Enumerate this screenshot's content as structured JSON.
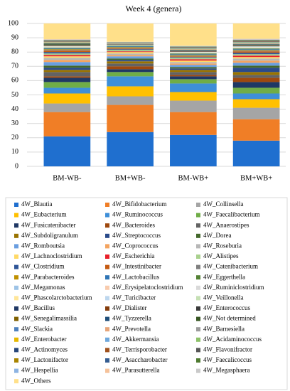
{
  "chart_data": {
    "type": "stacked_bar",
    "title": "Week 4 (genera)",
    "categories": [
      "BM-WB-",
      "BM+WB-",
      "BM-WB+",
      "BM+WB+"
    ],
    "ylim": [
      0,
      100
    ],
    "yticks": [
      0,
      10,
      20,
      30,
      40,
      50,
      60,
      70,
      80,
      90,
      100
    ],
    "grid": true,
    "series": [
      {
        "name": "4W_Blautia",
        "color": "#1f6fcf",
        "values": [
          21,
          24,
          22,
          18
        ]
      },
      {
        "name": "4W_Bifidobacterium",
        "color": "#f07e26",
        "values": [
          17,
          19,
          16,
          15
        ]
      },
      {
        "name": "4W_Collinsella",
        "color": "#a5a5a5",
        "values": [
          6,
          6,
          8,
          8
        ]
      },
      {
        "name": "4W_Eubacterium",
        "color": "#ffc000",
        "values": [
          7,
          7,
          6,
          6
        ]
      },
      {
        "name": "4W_Ruminococcus",
        "color": "#3e8fd8",
        "values": [
          4,
          7,
          6,
          4
        ]
      },
      {
        "name": "4W_Faecalibacterium",
        "color": "#70ad47",
        "values": [
          4,
          3,
          3,
          4
        ]
      },
      {
        "name": "4W_Fusicatenibacter",
        "color": "#1f3864",
        "values": [
          3,
          2,
          2,
          4
        ]
      },
      {
        "name": "4W_Bacteroides",
        "color": "#9e480e",
        "values": [
          1,
          2,
          1,
          3
        ]
      },
      {
        "name": "4W_Anaerostipes",
        "color": "#636363",
        "values": [
          3,
          2,
          2,
          2
        ]
      },
      {
        "name": "4W_Subdoligranulum",
        "color": "#997300",
        "values": [
          1.5,
          1.5,
          1.5,
          2
        ]
      },
      {
        "name": "4W_Streptococcus",
        "color": "#2a4a8a",
        "values": [
          1.5,
          1,
          1,
          3
        ]
      },
      {
        "name": "4W_Dorea",
        "color": "#43682b",
        "values": [
          1.5,
          1,
          1,
          1.5
        ]
      },
      {
        "name": "4W_Romboutsia",
        "color": "#6a9ee0",
        "values": [
          2.5,
          1.5,
          1.5,
          2
        ]
      },
      {
        "name": "4W_Coprococcus",
        "color": "#f4a460",
        "values": [
          1.5,
          1,
          1,
          1.5
        ]
      },
      {
        "name": "4W_Roseburia",
        "color": "#b7b7b7",
        "values": [
          1.5,
          1,
          1,
          1.5
        ]
      },
      {
        "name": "4W_Lachnoclostridium",
        "color": "#ffd966",
        "values": [
          1,
          1,
          1,
          1
        ]
      },
      {
        "name": "4W_Escherichia",
        "color": "#e8202a",
        "values": [
          1,
          0.5,
          1,
          1
        ]
      },
      {
        "name": "4W_Alistipes",
        "color": "#a9d18e",
        "values": [
          1,
          1,
          1,
          1
        ]
      },
      {
        "name": "4W_Clostridium",
        "color": "#2e5597",
        "values": [
          1,
          0.5,
          0.5,
          1
        ]
      },
      {
        "name": "4W_Intestinibacter",
        "color": "#c55a11",
        "values": [
          1,
          0.5,
          0.5,
          1
        ]
      },
      {
        "name": "4W_Catenibacterium",
        "color": "#7f7f7f",
        "values": [
          0.5,
          0.5,
          0.5,
          0.5
        ]
      },
      {
        "name": "4W_Parabacteroides",
        "color": "#bf9000",
        "values": [
          0.5,
          0.5,
          0.5,
          0.5
        ]
      },
      {
        "name": "4W_Lactobacillus",
        "color": "#2f75b5",
        "values": [
          0.5,
          0.5,
          0.5,
          0.5
        ]
      },
      {
        "name": "4W_Eggerthella",
        "color": "#548235",
        "values": [
          0.5,
          0.5,
          0.5,
          0.5
        ]
      },
      {
        "name": "4W_Megamonas",
        "color": "#9dc3e6",
        "values": [
          0.2,
          0.1,
          0.2,
          0.25
        ]
      },
      {
        "name": "4W_Erysipelatoclostridium",
        "color": "#f8cbad",
        "values": [
          0.2,
          0.1,
          0.2,
          0.25
        ]
      },
      {
        "name": "4W_Ruminiclostridium",
        "color": "#d9d9d9",
        "values": [
          0.2,
          0.1,
          0.2,
          0.25
        ]
      },
      {
        "name": "4W_Phascolarctobacterium",
        "color": "#ffe699",
        "values": [
          0.2,
          0.1,
          0.2,
          0.25
        ]
      },
      {
        "name": "4W_Turicibacter",
        "color": "#bdd7ee",
        "values": [
          0.2,
          0.1,
          0.2,
          0.25
        ]
      },
      {
        "name": "4W_Veillonella",
        "color": "#c5e0b4",
        "values": [
          0.2,
          0.1,
          0.2,
          0.25
        ]
      },
      {
        "name": "4W_Bacillus",
        "color": "#203864",
        "values": [
          0.2,
          0.1,
          0.2,
          0.25
        ]
      },
      {
        "name": "4W_Dialister",
        "color": "#843c0c",
        "values": [
          0.2,
          0.1,
          0.2,
          0.25
        ]
      },
      {
        "name": "4W_Enterococcus",
        "color": "#3a3a3a",
        "values": [
          0.2,
          0.1,
          0.2,
          0.25
        ]
      },
      {
        "name": "4W_Senegalimassilia",
        "color": "#7f6000",
        "values": [
          0.2,
          0.1,
          0.2,
          0.25
        ]
      },
      {
        "name": "4W_Tyzzerella",
        "color": "#1f4e79",
        "values": [
          0.2,
          0.1,
          0.2,
          0.25
        ]
      },
      {
        "name": "4W_Not determined",
        "color": "#375623",
        "values": [
          0.8,
          0.1,
          0.2,
          0.25
        ]
      },
      {
        "name": "4W_Slackia",
        "color": "#4f81bd",
        "values": [
          0.2,
          0.1,
          0.2,
          0.25
        ]
      },
      {
        "name": "4W_Prevotella",
        "color": "#e6a57a",
        "values": [
          0.2,
          0.1,
          0.2,
          0.25
        ]
      },
      {
        "name": "4W_Barnesiella",
        "color": "#9b9b9b",
        "values": [
          0.2,
          0.1,
          0.2,
          0.25
        ]
      },
      {
        "name": "4W_Enterobacter",
        "color": "#e6b800",
        "values": [
          0.2,
          0.1,
          0.2,
          0.25
        ]
      },
      {
        "name": "4W_Akkermansia",
        "color": "#6fa8dc",
        "values": [
          0.2,
          0.1,
          0.2,
          0.25
        ]
      },
      {
        "name": "4W_Acidaminococcus",
        "color": "#8cc168",
        "values": [
          0.2,
          0.1,
          0.2,
          0.25
        ]
      },
      {
        "name": "4W_Actinomyces",
        "color": "#28477a",
        "values": [
          0.2,
          0.1,
          0.2,
          0.25
        ]
      },
      {
        "name": "4W_Terrisporobacter",
        "color": "#a0521e",
        "values": [
          0.2,
          0.1,
          0.2,
          0.25
        ]
      },
      {
        "name": "4W_Flavonifractor",
        "color": "#575757",
        "values": [
          0.2,
          0.1,
          0.2,
          0.25
        ]
      },
      {
        "name": "4W_Lactonifactor",
        "color": "#a88400",
        "values": [
          0.2,
          0.1,
          0.2,
          0.25
        ]
      },
      {
        "name": "4W_Asaccharobacter",
        "color": "#355d91",
        "values": [
          0.2,
          0.1,
          0.2,
          0.25
        ]
      },
      {
        "name": "4W_Faecalicoccus",
        "color": "#4e7a30",
        "values": [
          0.2,
          0.1,
          0.2,
          0.25
        ]
      },
      {
        "name": "4W_Hespellia",
        "color": "#8db3e2",
        "values": [
          0.2,
          0.1,
          0.2,
          0.25
        ]
      },
      {
        "name": "4W_Parasutterella",
        "color": "#f5c29a",
        "values": [
          0.2,
          0.1,
          0.2,
          0.25
        ]
      },
      {
        "name": "4W_Megasphaera",
        "color": "#c9c9c9",
        "values": [
          0.2,
          0.1,
          0.2,
          0.25
        ]
      },
      {
        "name": "4W_Others",
        "color": "#ffe08a",
        "values": [
          11,
          12.8,
          15.6,
          10.8
        ]
      }
    ]
  }
}
